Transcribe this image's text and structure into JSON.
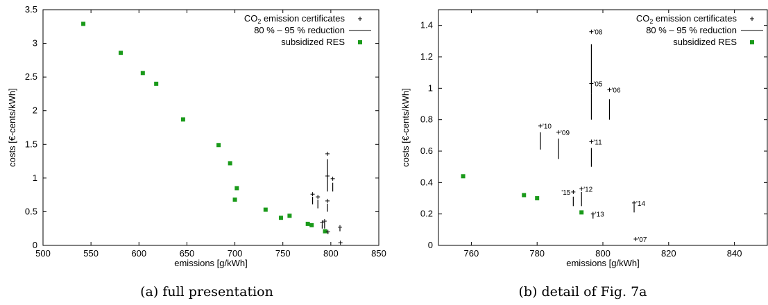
{
  "chart_data": [
    {
      "type": "scatter",
      "caption": "(a) full presentation",
      "xlabel": "emissions [g/kWh]",
      "ylabel": "costs [€-cents/kWh]",
      "xlim": [
        500,
        850
      ],
      "ylim": [
        0,
        3.5
      ],
      "x_ticks": [
        "500",
        "550",
        "600",
        "650",
        "700",
        "750",
        "800",
        "850"
      ],
      "y_ticks": [
        "0",
        "0.5",
        "1",
        "1.5",
        "2",
        "2.5",
        "3",
        "3.5"
      ],
      "legend": [
        "CO2 emission certificates",
        "80 % – 95 % reduction",
        "subsidized RES"
      ],
      "legend_position": "top-right",
      "series": [
        {
          "name": "subsidized RES",
          "marker": "square",
          "color": "#1a9a1a",
          "points": [
            [
              542,
              3.29
            ],
            [
              581,
              2.86
            ],
            [
              604,
              2.56
            ],
            [
              618,
              2.4
            ],
            [
              646,
              1.87
            ],
            [
              683,
              1.49
            ],
            [
              695,
              1.22
            ],
            [
              702,
              0.85
            ],
            [
              700,
              0.68
            ],
            [
              732,
              0.53
            ],
            [
              748,
              0.41
            ],
            [
              757,
              0.44
            ],
            [
              776,
              0.32
            ],
            [
              780,
              0.3
            ],
            [
              794,
              0.21
            ]
          ]
        },
        {
          "name": "CO2 emission certificates",
          "marker": "plus",
          "color": "#000000",
          "points": [
            [
              796.5,
              1.36
            ],
            [
              796.5,
              1.03
            ],
            [
              802,
              0.99
            ],
            [
              781,
              0.76
            ],
            [
              786.5,
              0.72
            ],
            [
              796.5,
              0.66
            ],
            [
              793.5,
              0.36
            ],
            [
              791,
              0.34
            ],
            [
              797,
              0.2
            ],
            [
              809.5,
              0.27
            ],
            [
              810,
              0.04
            ]
          ]
        },
        {
          "name": "80 % – 95 % reduction",
          "marker": "segment",
          "color": "#000000",
          "segments": [
            [
              796.5,
              0.97,
              1.28
            ],
            [
              796.5,
              0.8,
              0.97
            ],
            [
              802,
              0.8,
              0.93
            ],
            [
              781,
              0.61,
              0.72
            ],
            [
              786.5,
              0.55,
              0.68
            ],
            [
              796.5,
              0.5,
              0.62
            ],
            [
              793.5,
              0.25,
              0.34
            ],
            [
              791,
              0.25,
              0.31
            ],
            [
              797,
              0.17,
              0.2
            ],
            [
              809.5,
              0.21,
              0.26
            ]
          ]
        }
      ]
    },
    {
      "type": "scatter",
      "caption": "(b) detail of Fig. 7a",
      "xlabel": "emissions [g/kWh]",
      "ylabel": "costs [€-cents/kWh]",
      "xlim": [
        750,
        850
      ],
      "ylim": [
        0,
        1.5
      ],
      "x_ticks": [
        "760",
        "780",
        "800",
        "820",
        "840"
      ],
      "y_ticks": [
        "0",
        "0.2",
        "0.4",
        "0.6",
        "0.8",
        "1",
        "1.2",
        "1.4"
      ],
      "legend": [
        "CO2 emission certificates",
        "80 % – 95 % reduction",
        "subsidized RES"
      ],
      "legend_position": "top-right",
      "series": [
        {
          "name": "subsidized RES",
          "marker": "square",
          "color": "#1a9a1a",
          "points": [
            [
              757.5,
              0.44
            ],
            [
              776,
              0.32
            ],
            [
              780,
              0.3
            ],
            [
              793.5,
              0.21
            ]
          ]
        },
        {
          "name": "CO2 emission certificates",
          "marker": "plus",
          "color": "#000000",
          "points": [
            [
              796.5,
              1.36
            ],
            [
              796.5,
              1.03
            ],
            [
              802,
              0.99
            ],
            [
              781,
              0.76
            ],
            [
              786.5,
              0.72
            ],
            [
              796.5,
              0.66
            ],
            [
              793.5,
              0.36
            ],
            [
              791,
              0.34
            ],
            [
              797,
              0.2
            ],
            [
              809.5,
              0.27
            ],
            [
              810,
              0.04
            ]
          ]
        },
        {
          "name": "80 % – 95 % reduction",
          "marker": "segment",
          "color": "#000000",
          "segments": [
            [
              796.5,
              0.97,
              1.28
            ],
            [
              796.5,
              0.8,
              0.97
            ],
            [
              802,
              0.8,
              0.93
            ],
            [
              781,
              0.61,
              0.72
            ],
            [
              786.5,
              0.55,
              0.68
            ],
            [
              796.5,
              0.5,
              0.62
            ],
            [
              793.5,
              0.25,
              0.34
            ],
            [
              791,
              0.25,
              0.31
            ],
            [
              797,
              0.17,
              0.2
            ],
            [
              809.5,
              0.21,
              0.26
            ]
          ]
        }
      ],
      "annotations": [
        {
          "text": "'08",
          "x": 796.5,
          "y": 1.36
        },
        {
          "text": "'05",
          "x": 796.5,
          "y": 1.03
        },
        {
          "text": "'06",
          "x": 802,
          "y": 0.99
        },
        {
          "text": "'10",
          "x": 781,
          "y": 0.76
        },
        {
          "text": "'09",
          "x": 786.5,
          "y": 0.72
        },
        {
          "text": "'11",
          "x": 796.5,
          "y": 0.66
        },
        {
          "text": "'12",
          "x": 793.5,
          "y": 0.36
        },
        {
          "text": "'15",
          "x": 791,
          "y": 0.34,
          "side": "left"
        },
        {
          "text": "'13",
          "x": 797,
          "y": 0.2
        },
        {
          "text": "'14",
          "x": 809.5,
          "y": 0.27
        },
        {
          "text": "'07",
          "x": 810,
          "y": 0.04
        }
      ]
    }
  ]
}
